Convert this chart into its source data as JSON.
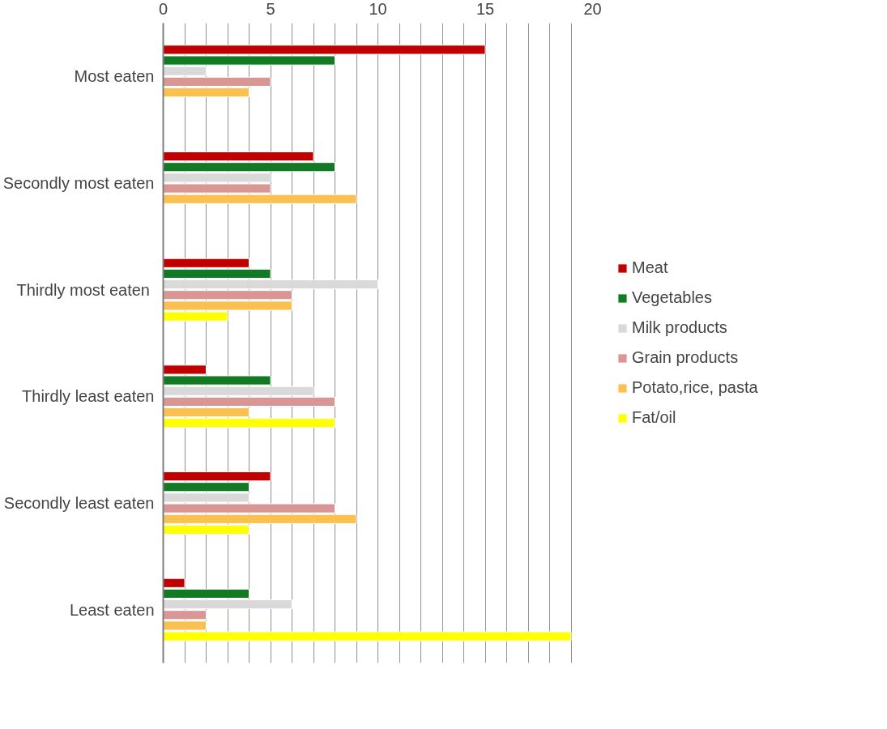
{
  "chart_data": {
    "type": "bar",
    "orientation": "horizontal",
    "categories": [
      "Most eaten",
      "Secondly most eaten",
      "Thirdly most  eaten",
      "Thirdly least eaten",
      "Secondly least eaten",
      "Least eaten"
    ],
    "series": [
      {
        "name": "Meat",
        "color": "#c00000",
        "values": [
          15,
          7,
          4,
          2,
          5,
          1
        ]
      },
      {
        "name": "Vegetables",
        "color": "#127a22",
        "values": [
          8,
          8,
          5,
          5,
          4,
          4
        ]
      },
      {
        "name": "Milk products",
        "color": "#d9d9d9",
        "values": [
          2,
          5,
          10,
          7,
          4,
          6
        ]
      },
      {
        "name": "Grain products",
        "color": "#da9694",
        "values": [
          5,
          5,
          6,
          8,
          8,
          2
        ]
      },
      {
        "name": "Potato,rice, pasta",
        "color": "#fac050",
        "values": [
          4,
          9,
          6,
          4,
          9,
          2
        ]
      },
      {
        "name": "Fat/oil",
        "color": "#ffff00",
        "values": [
          null,
          null,
          3,
          8,
          4,
          19
        ]
      }
    ],
    "xlim": [
      0,
      20
    ],
    "xticks": [
      0,
      {
        "value": 1,
        "label": null
      },
      {
        "value": 2,
        "label": null
      },
      {
        "value": 3,
        "label": null
      },
      {
        "value": 4,
        "label": null
      },
      5,
      {
        "value": 6,
        "label": null
      },
      {
        "value": 7,
        "label": null
      },
      {
        "value": 8,
        "label": null
      },
      {
        "value": 9,
        "label": null
      },
      10,
      {
        "value": 11,
        "label": null
      },
      {
        "value": 12,
        "label": null
      },
      {
        "value": 13,
        "label": null
      },
      {
        "value": 14,
        "label": null
      },
      15,
      {
        "value": 16,
        "label": null
      },
      {
        "value": 17,
        "label": null
      },
      {
        "value": 18,
        "label": null
      },
      {
        "value": 19,
        "label": null
      },
      20
    ],
    "grid": "x",
    "legend": "right"
  }
}
